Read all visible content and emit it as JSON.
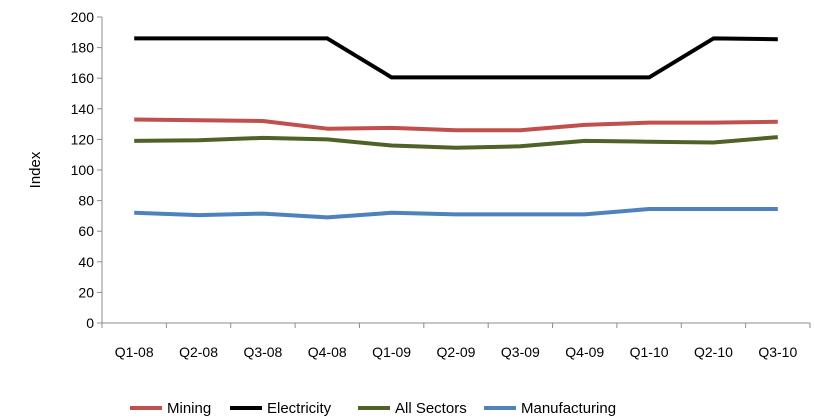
{
  "chart_data": {
    "type": "line",
    "title": "",
    "xlabel": "",
    "ylabel": "Index",
    "ylim": [
      0,
      200
    ],
    "yticks": [
      0,
      20,
      40,
      60,
      80,
      100,
      120,
      140,
      160,
      180,
      200
    ],
    "grid": false,
    "legend_position": "bottom",
    "categories": [
      "Q1-08",
      "Q2-08",
      "Q3-08",
      "Q4-08",
      "Q1-09",
      "Q2-09",
      "Q3-09",
      "Q4-09",
      "Q1-10",
      "Q2-10",
      "Q3-10"
    ],
    "series": [
      {
        "name": "Mining",
        "color": "#c0504d",
        "values": [
          133,
          132.5,
          132,
          127,
          127.5,
          126,
          126,
          129.5,
          131,
          131,
          131.5
        ]
      },
      {
        "name": "Electricity",
        "color": "#000000",
        "values": [
          186,
          186,
          186,
          186,
          160.5,
          160.5,
          160.5,
          160.5,
          160.5,
          186,
          185.5
        ]
      },
      {
        "name": "All Sectors",
        "color": "#4f6228",
        "values": [
          119,
          119.5,
          121,
          120,
          116,
          114.5,
          115.5,
          119,
          118.5,
          118,
          121.5
        ]
      },
      {
        "name": "Manufacturing",
        "color": "#4f81bd",
        "values": [
          72,
          70.5,
          71.5,
          69,
          72,
          71,
          71,
          71,
          74.5,
          74.5,
          74.5
        ]
      }
    ]
  }
}
